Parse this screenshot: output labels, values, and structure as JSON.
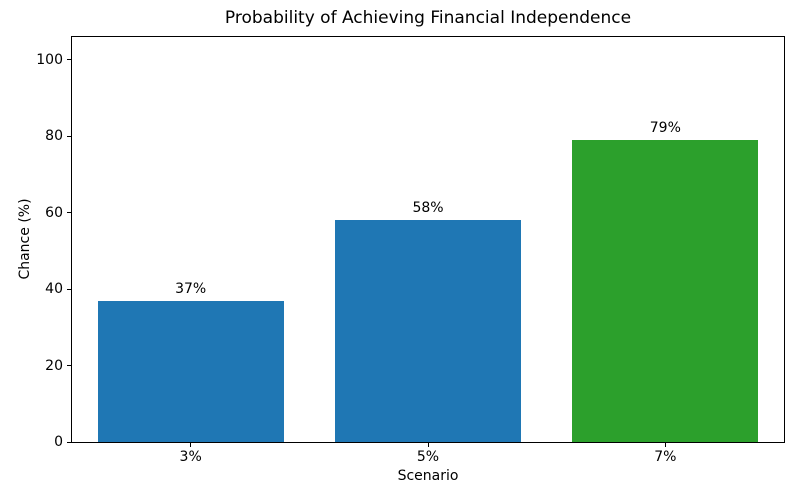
{
  "chart_data": {
    "type": "bar",
    "title": "Probability of Achieving Financial Independence",
    "xlabel": "Scenario",
    "ylabel": "Chance (%)",
    "categories": [
      "3%",
      "5%",
      "7%"
    ],
    "values": [
      37,
      58,
      79
    ],
    "value_labels": [
      "37%",
      "58%",
      "79%"
    ],
    "bar_colors": [
      "#1f77b4",
      "#1f77b4",
      "#2ca02c"
    ],
    "yticks": [
      0,
      20,
      40,
      60,
      80,
      100
    ],
    "ylim": [
      0,
      106
    ],
    "grid": false,
    "legend": "none",
    "background_color": "#ffffff",
    "text_color": "#000000",
    "spine_color": "#000000"
  }
}
